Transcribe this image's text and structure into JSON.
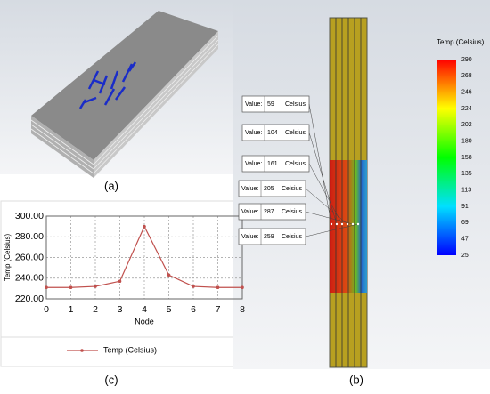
{
  "panels": {
    "a": "(a)",
    "b": "(b)",
    "c": "(c)"
  },
  "chart_data": {
    "type": "line",
    "x_label": "Node",
    "y_label": "Temp (Celsius)",
    "x": [
      0,
      1,
      2,
      3,
      4,
      5,
      6,
      7,
      8
    ],
    "series": [
      {
        "name": "Temp (Celsius)",
        "color": "#c0504d",
        "values": [
          231,
          231,
          232,
          237,
          290,
          243,
          232,
          231,
          231
        ]
      }
    ],
    "xlim": [
      0,
      8
    ],
    "xticks": [
      0,
      1,
      2,
      3,
      4,
      5,
      6,
      7,
      8
    ],
    "ylim": [
      220,
      300
    ],
    "yticks": [
      {
        "value": 220,
        "label": "220.00"
      },
      {
        "value": 240,
        "label": "240.00"
      },
      {
        "value": 260,
        "label": "260.00"
      },
      {
        "value": 280,
        "label": "280.00"
      },
      {
        "value": 300,
        "label": "300.00"
      }
    ],
    "grid": true
  },
  "colorbar": {
    "title": "Temp (Celsius)",
    "ticks": [
      290,
      268,
      246,
      224,
      202,
      180,
      158,
      135,
      113,
      91,
      69,
      47,
      25
    ]
  },
  "probes": [
    {
      "label": "Value:",
      "value": 59,
      "unit": "Celsius"
    },
    {
      "label": "Value:",
      "value": 104,
      "unit": "Celsius"
    },
    {
      "label": "Value:",
      "value": 161,
      "unit": "Celsius"
    },
    {
      "label": "Value:",
      "value": 205,
      "unit": "Celsius"
    },
    {
      "label": "Value:",
      "value": 287,
      "unit": "Celsius"
    },
    {
      "label": "Value:",
      "value": 259,
      "unit": "Celsius"
    }
  ]
}
